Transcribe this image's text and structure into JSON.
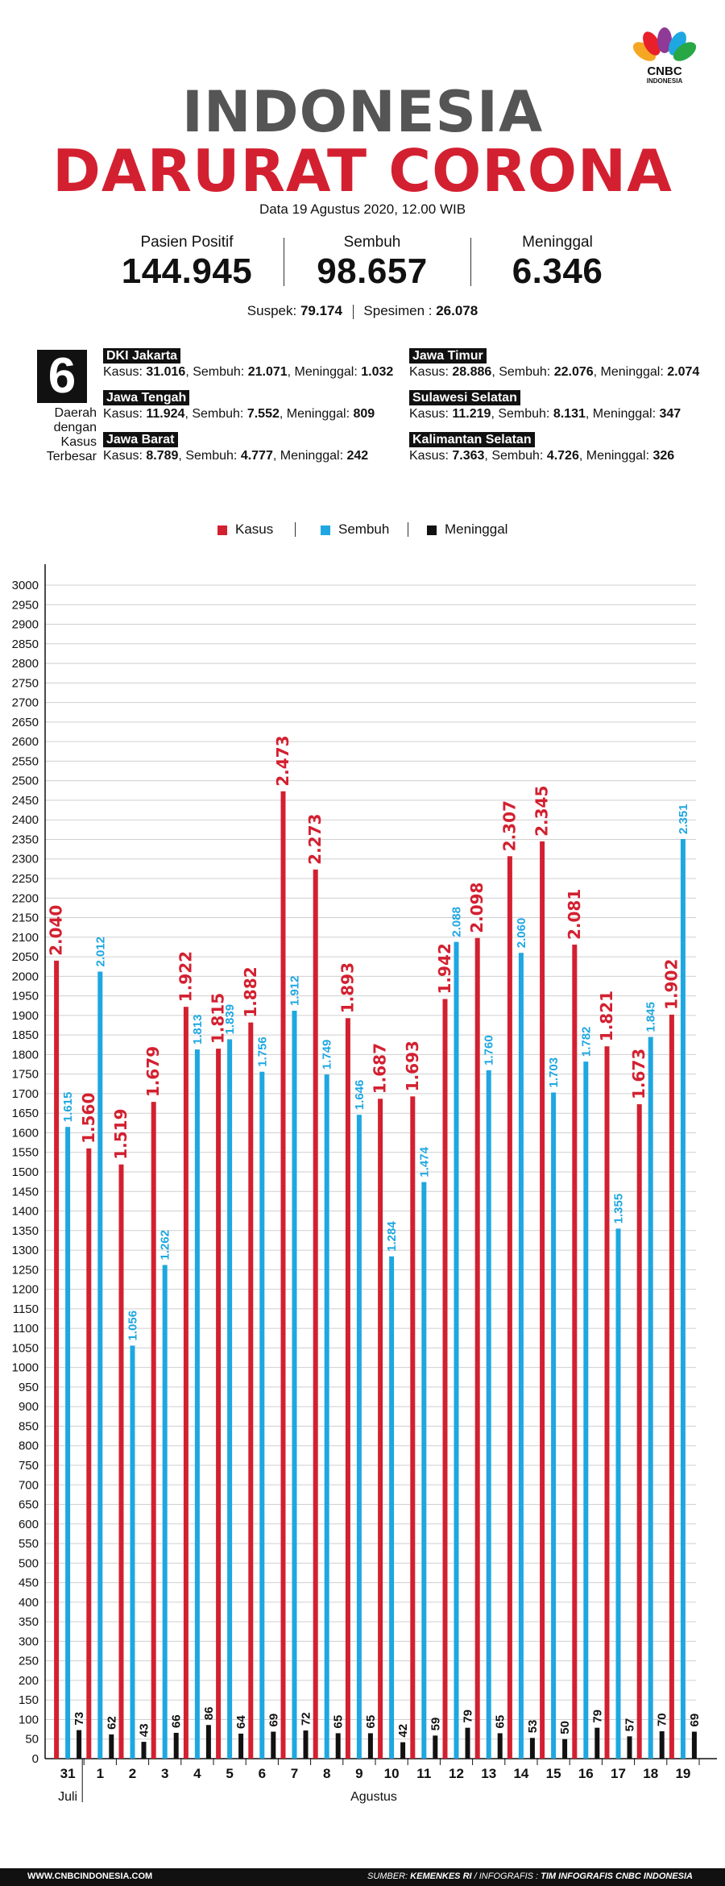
{
  "brand": {
    "logo_text": "CNBC",
    "logo_sub": "INDONESIA"
  },
  "header": {
    "title_line1": "INDONESIA",
    "title_line2": "DARURAT CORONA",
    "date": "Data 19 Agustus 2020, 12.00 WIB"
  },
  "stats": [
    {
      "label": "Pasien Positif",
      "value": "144.945"
    },
    {
      "label": "Sembuh",
      "value": "98.657"
    },
    {
      "label": "Meninggal",
      "value": "6.346"
    }
  ],
  "sub_stats": {
    "suspek_label": "Suspek:",
    "suspek": "79.174",
    "spesimen_label": "Spesimen :",
    "spesimen": "26.078"
  },
  "regions_box": {
    "number": "6",
    "label_lines": [
      "Daerah",
      "dengan",
      "Kasus",
      "Terbesar"
    ]
  },
  "regions": [
    {
      "name": "DKI Jakarta",
      "kasus": "31.016",
      "sembuh": "21.071",
      "meninggal": "1.032"
    },
    {
      "name": "Jawa Tengah",
      "kasus": "11.924",
      "sembuh": "7.552",
      "meninggal": "809"
    },
    {
      "name": "Jawa Barat",
      "kasus": "8.789",
      "sembuh": "4.777",
      "meninggal": "242"
    },
    {
      "name": "Jawa Timur",
      "kasus": "28.886",
      "sembuh": "22.076",
      "meninggal": "2.074"
    },
    {
      "name": "Sulawesi Selatan",
      "kasus": "11.219",
      "sembuh": "8.131",
      "meninggal": "347"
    },
    {
      "name": "Kalimantan Selatan",
      "kasus": "7.363",
      "sembuh": "4.726",
      "meninggal": "326"
    }
  ],
  "region_labels": {
    "kasus": "Kasus:",
    "sembuh": "Sembuh:",
    "meninggal": "Meninggal:"
  },
  "chart_data": {
    "type": "bar",
    "categories": [
      "31",
      "1",
      "2",
      "3",
      "4",
      "5",
      "6",
      "7",
      "8",
      "9",
      "10",
      "11",
      "12",
      "13",
      "14",
      "15",
      "16",
      "17",
      "18",
      "19"
    ],
    "month_labels": [
      {
        "label": "Juli",
        "from": "31"
      },
      {
        "label": "Agustus",
        "from": "1"
      }
    ],
    "series": [
      {
        "name": "Kasus",
        "color": "#d32030",
        "values": [
          2040,
          1560,
          1519,
          1679,
          1922,
          1815,
          1882,
          2473,
          2273,
          1893,
          1687,
          1693,
          1942,
          2098,
          2307,
          2345,
          2081,
          1821,
          1673,
          1902
        ]
      },
      {
        "name": "Sembuh",
        "color": "#1ea7e1",
        "values": [
          1615,
          2012,
          1056,
          1262,
          1813,
          1839,
          1756,
          1912,
          1749,
          1646,
          1284,
          1474,
          2088,
          1760,
          2060,
          1703,
          1782,
          1355,
          1845,
          2351
        ]
      },
      {
        "name": "Meninggal",
        "color": "#111111",
        "values": [
          73,
          62,
          43,
          66,
          86,
          64,
          69,
          72,
          65,
          65,
          42,
          59,
          79,
          65,
          53,
          50,
          79,
          57,
          70,
          69
        ]
      }
    ],
    "data_labels": {
      "Kasus": [
        "2.040",
        "1.560",
        "1.519",
        "1.679",
        "1.922",
        "1.815",
        "1.882",
        "2.473",
        "2.273",
        "1.893",
        "1.687",
        "1.693",
        "1.942",
        "2.098",
        "2.307",
        "2.345",
        "2.081",
        "1.821",
        "1.673",
        "1.902"
      ],
      "Sembuh": [
        "1.615",
        "2.012",
        "1.056",
        "1.262",
        "1.813",
        "1.839",
        "1.756",
        "1.912",
        "1.749",
        "1.646",
        "1.284",
        "1.474",
        "2.088",
        "1.760",
        "2.060",
        "1.703",
        "1.782",
        "1.355",
        "1.845",
        "2.351"
      ],
      "Meninggal": [
        "73",
        "62",
        "43",
        "66",
        "86",
        "64",
        "69",
        "72",
        "65",
        "65",
        "42",
        "59",
        "79",
        "65",
        "53",
        "50",
        "79",
        "57",
        "70",
        "69"
      ]
    },
    "yticks": [
      0,
      50,
      100,
      150,
      200,
      250,
      300,
      350,
      400,
      450,
      500,
      550,
      600,
      650,
      700,
      750,
      800,
      850,
      900,
      950,
      1000,
      1050,
      1100,
      1150,
      1200,
      1250,
      1300,
      1350,
      1400,
      1450,
      1500,
      1550,
      1600,
      1650,
      1700,
      1750,
      1800,
      1850,
      1900,
      1950,
      2000,
      2050,
      2100,
      2150,
      2200,
      2250,
      2300,
      2350,
      2400,
      2450,
      2500,
      2550,
      2600,
      2650,
      2700,
      2750,
      2800,
      2850,
      2900,
      2950,
      3000
    ],
    "ylim": [
      0,
      3000
    ],
    "grid": true,
    "legend_position": "top-center"
  },
  "footer": {
    "website": "WWW.CNBCINDONESIA.COM",
    "sumber_label": "SUMBER:",
    "sumber": "KEMENKES RI",
    "infografis_label": "/ INFOGRAFIS :",
    "infografis": "TIM INFOGRAFIS CNBC INDONESIA"
  }
}
